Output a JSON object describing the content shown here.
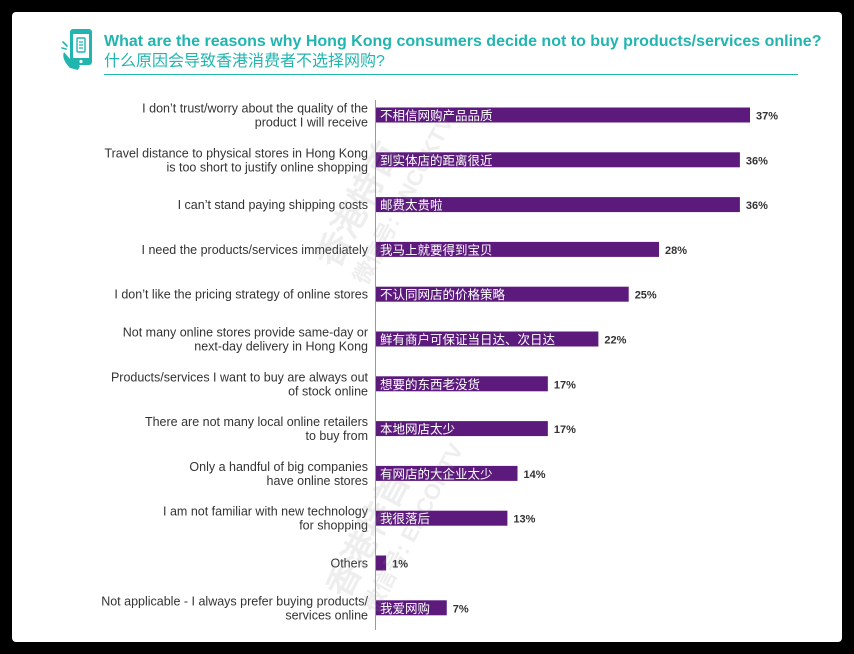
{
  "header": {
    "title_en": "What are the reasons why Hong Kong consumers decide not to buy products/services online?",
    "title_zh": "什么原因会导致香港消费者不选择网购?"
  },
  "watermarks": [
    "香港特首",
    "微信号: ENCOKTV",
    "香港特首",
    "微信号: ENCOKTV"
  ],
  "colors": {
    "accent": "#22b5b0",
    "bar": "#5c1a7d",
    "text": "#333333"
  },
  "chart_data": {
    "type": "bar",
    "orientation": "horizontal",
    "title": "What are the reasons why Hong Kong consumers decide not to buy products/services online? 什么原因会导致香港消费者不选择网购?",
    "xlim": [
      0,
      37
    ],
    "categories": [
      [
        "I don’t trust/worry about the quality of the",
        "product I will receive"
      ],
      [
        "Travel distance to physical stores in Hong Kong",
        "is too short to justify online shopping"
      ],
      [
        "I can’t stand paying shipping costs"
      ],
      [
        "I need the products/services immediately"
      ],
      [
        "I don’t like the pricing strategy of online stores"
      ],
      [
        "Not many online stores provide same-day or",
        "next-day delivery in Hong Kong"
      ],
      [
        "Products/services I want to buy are always out",
        "of stock online"
      ],
      [
        "There are not many local online retailers",
        "to buy from"
      ],
      [
        "Only a handful of big companies",
        "have online stores"
      ],
      [
        "I am not familiar with new technology",
        "for shopping"
      ],
      [
        "Others"
      ],
      [
        "Not applicable - I always prefer buying products/",
        "services online"
      ]
    ],
    "bar_labels_zh": [
      "不相信网购产品品质",
      "到实体店的距离很近",
      "邮费太贵啦",
      "我马上就要得到宝贝",
      "不认同网店的价格策略",
      "鲜有商户可保证当日达、次日达",
      "想要的东西老没货",
      "本地网店太少",
      "有网店的大企业太少",
      "我很落后",
      "",
      "我爱网购"
    ],
    "values": [
      37,
      36,
      36,
      28,
      25,
      22,
      17,
      17,
      14,
      13,
      1,
      7
    ],
    "value_labels": [
      "37%",
      "36%",
      "36%",
      "28%",
      "25%",
      "22%",
      "17%",
      "17%",
      "14%",
      "13%",
      "1%",
      "7%"
    ]
  }
}
